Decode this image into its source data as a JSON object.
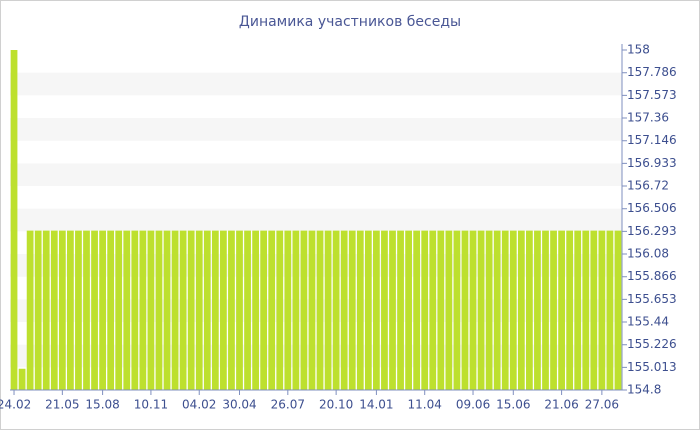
{
  "chart_data": {
    "type": "bar",
    "title": "Динамика участников беседы",
    "categories": [
      "24.02",
      null,
      null,
      null,
      null,
      null,
      "21.05",
      null,
      null,
      null,
      null,
      "15.08",
      null,
      null,
      null,
      null,
      null,
      "10.11",
      null,
      null,
      null,
      null,
      null,
      "04.02",
      null,
      null,
      null,
      null,
      "30.04",
      null,
      null,
      null,
      null,
      null,
      "26.07",
      null,
      null,
      null,
      null,
      null,
      "20.10",
      null,
      null,
      null,
      null,
      "14.01",
      null,
      null,
      null,
      null,
      null,
      "11.04",
      null,
      null,
      null,
      null,
      null,
      "09.06",
      null,
      null,
      null,
      null,
      "15.06",
      null,
      null,
      null,
      null,
      null,
      "21.06",
      null,
      null,
      null,
      null,
      "27.06",
      null,
      null
    ],
    "values": [
      158,
      155,
      156.3,
      156.3,
      156.3,
      156.3,
      156.3,
      156.3,
      156.3,
      156.3,
      156.3,
      156.3,
      156.3,
      156.3,
      156.3,
      156.3,
      156.3,
      156.3,
      156.3,
      156.3,
      156.3,
      156.3,
      156.3,
      156.3,
      156.3,
      156.3,
      156.3,
      156.3,
      156.3,
      156.3,
      156.3,
      156.3,
      156.3,
      156.3,
      156.3,
      156.3,
      156.3,
      156.3,
      156.3,
      156.3,
      156.3,
      156.3,
      156.3,
      156.3,
      156.3,
      156.3,
      156.3,
      156.3,
      156.3,
      156.3,
      156.3,
      156.3,
      156.3,
      156.3,
      156.3,
      156.3,
      156.3,
      156.3,
      156.3,
      156.3,
      156.3,
      156.3,
      156.3,
      156.3,
      156.3,
      156.3,
      156.3,
      156.3,
      156.3,
      156.3,
      156.3,
      156.3,
      156.3,
      156.3,
      156.3,
      156.3
    ],
    "color": "#bde02e",
    "ylim": [
      154.8,
      158
    ],
    "yticks": [
      154.8,
      155.013,
      155.226,
      155.44,
      155.653,
      155.866,
      156.08,
      156.293,
      156.506,
      156.72,
      156.933,
      157.146,
      157.36,
      157.573,
      157.786,
      158
    ],
    "grid": true
  }
}
